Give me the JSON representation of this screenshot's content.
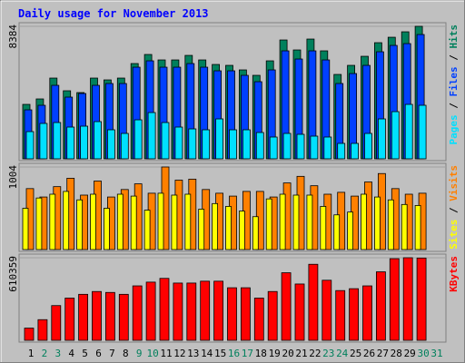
{
  "title": "Daily usage for November 2013",
  "categories": [
    "1",
    "2",
    "3",
    "4",
    "5",
    "6",
    "7",
    "8",
    "9",
    "10",
    "11",
    "12",
    "13",
    "14",
    "15",
    "16",
    "17",
    "18",
    "19",
    "20",
    "21",
    "22",
    "23",
    "24",
    "25",
    "26",
    "27",
    "28",
    "29",
    "30",
    "31"
  ],
  "category_colors": [
    "#000000",
    "#00805c",
    "#00805c",
    "#000000",
    "#000000",
    "#000000",
    "#000000",
    "#000000",
    "#00805c",
    "#00805c",
    "#000000",
    "#000000",
    "#000000",
    "#000000",
    "#000000",
    "#00805c",
    "#00805c",
    "#000000",
    "#000000",
    "#000000",
    "#000000",
    "#000000",
    "#00805c",
    "#00805c",
    "#000000",
    "#000000",
    "#000000",
    "#000000",
    "#000000",
    "#00805c",
    "#00805c"
  ],
  "legend_separator": " / ",
  "chart_data": [
    {
      "type": "bar",
      "ylim": [
        0,
        8384
      ],
      "yticks": [
        8384
      ],
      "series": [
        {
          "name": "Pages",
          "color": "#00e0ff",
          "values": [
            1722,
            2239,
            2296,
            2009,
            2066,
            2354,
            1837,
            1607,
            2468,
            2927,
            2296,
            2009,
            1894,
            1837,
            2526,
            1837,
            1837,
            1665,
            1378,
            1607,
            1550,
            1435,
            1378,
            976,
            976,
            1607,
            2526,
            2985,
            3444,
            3387,
            null
          ]
        },
        {
          "name": "Files",
          "color": "#0040ff",
          "values": [
            3100,
            3387,
            4650,
            3904,
            4133,
            4650,
            4765,
            4765,
            5798,
            6200,
            5798,
            5798,
            6028,
            5798,
            5569,
            5569,
            5282,
            4880,
            5626,
            6832,
            6315,
            6832,
            6257,
            4765,
            5396,
            5913,
            6774,
            7176,
            7291,
            7865,
            null
          ]
        },
        {
          "name": "Hits",
          "color": "#00805c",
          "values": [
            3444,
            3789,
            5109,
            4306,
            4191,
            5109,
            4994,
            5109,
            6028,
            6602,
            6257,
            6257,
            6544,
            6257,
            5970,
            5913,
            5626,
            5282,
            6200,
            7520,
            6889,
            7578,
            6832,
            5339,
            5913,
            6487,
            7348,
            7692,
            8037,
            8384,
            null
          ]
        }
      ]
    },
    {
      "type": "bar",
      "ylim": [
        0,
        1004
      ],
      "yticks": [
        1004
      ],
      "series": [
        {
          "name": "Sites",
          "color": "#ffff00",
          "values": [
            502,
            627,
            673,
            707,
            604,
            673,
            502,
            673,
            650,
            479,
            685,
            662,
            673,
            491,
            559,
            525,
            468,
            400,
            616,
            673,
            662,
            662,
            525,
            422,
            456,
            673,
            639,
            604,
            548,
            536,
            null
          ]
        },
        {
          "name": "Visits",
          "color": "#ff8000",
          "values": [
            741,
            639,
            765,
            867,
            662,
            833,
            639,
            730,
            799,
            685,
            1004,
            844,
            856,
            730,
            685,
            650,
            707,
            707,
            639,
            810,
            890,
            776,
            673,
            696,
            650,
            822,
            924,
            741,
            673,
            685,
            null
          ]
        }
      ]
    },
    {
      "type": "bar",
      "ylim": [
        0,
        610359
      ],
      "yticks": [
        610359
      ],
      "series": [
        {
          "name": "KBytes",
          "color": "#ff0000",
          "values": [
            90168,
            152592,
            256632,
            312120,
            339864,
            360672,
            353736,
            339864,
            402288,
            430032,
            457776,
            423096,
            423096,
            436968,
            436968,
            388416,
            388416,
            312120,
            360672,
            499392,
            416160,
            561816,
            443904,
            367608,
            381480,
            402288,
            506328,
            603432,
            610359,
            608000,
            null
          ]
        }
      ]
    }
  ]
}
